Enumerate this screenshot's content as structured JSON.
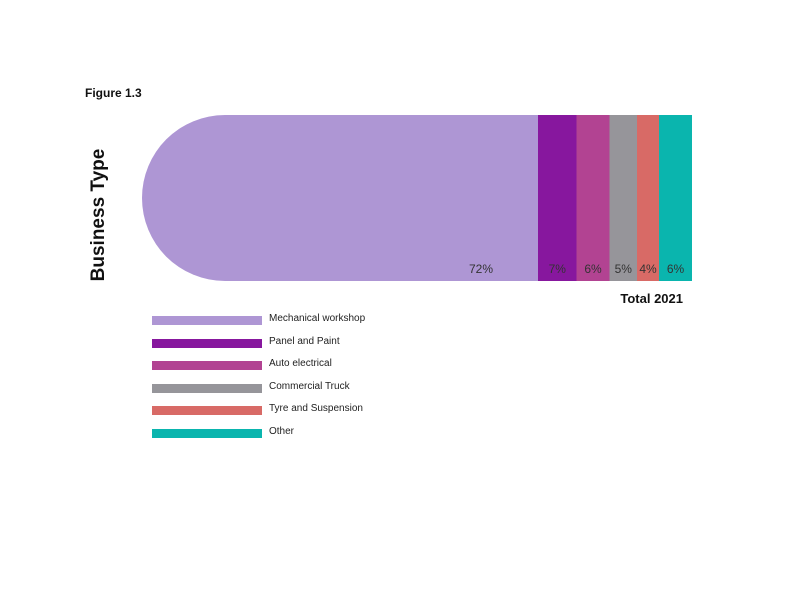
{
  "figure_label": "Figure 1.3",
  "chart_data": {
    "type": "bar",
    "orientation": "horizontal",
    "stacked": true,
    "ylabel": "Business Type",
    "xlabel": "",
    "categories": [
      "Total 2021"
    ],
    "series": [
      {
        "name": "Mechanical workshop",
        "values": [
          72
        ],
        "label": "72%",
        "color": "#AE96D4"
      },
      {
        "name": "Panel and Paint",
        "values": [
          7
        ],
        "label": "7%",
        "color": "#87179E"
      },
      {
        "name": "Auto electrical",
        "values": [
          6
        ],
        "label": "6%",
        "color": "#B24392"
      },
      {
        "name": "Commercial Truck",
        "values": [
          5
        ],
        "label": "5%",
        "color": "#96959A"
      },
      {
        "name": "Tyre and Suspension",
        "values": [
          4
        ],
        "label": "4%",
        "color": "#D86A66"
      },
      {
        "name": "Other",
        "values": [
          6
        ],
        "label": "6%",
        "color": "#0AB5AE"
      }
    ],
    "xlim": [
      0,
      100
    ],
    "grid": false,
    "legend_position": "bottom-left"
  }
}
